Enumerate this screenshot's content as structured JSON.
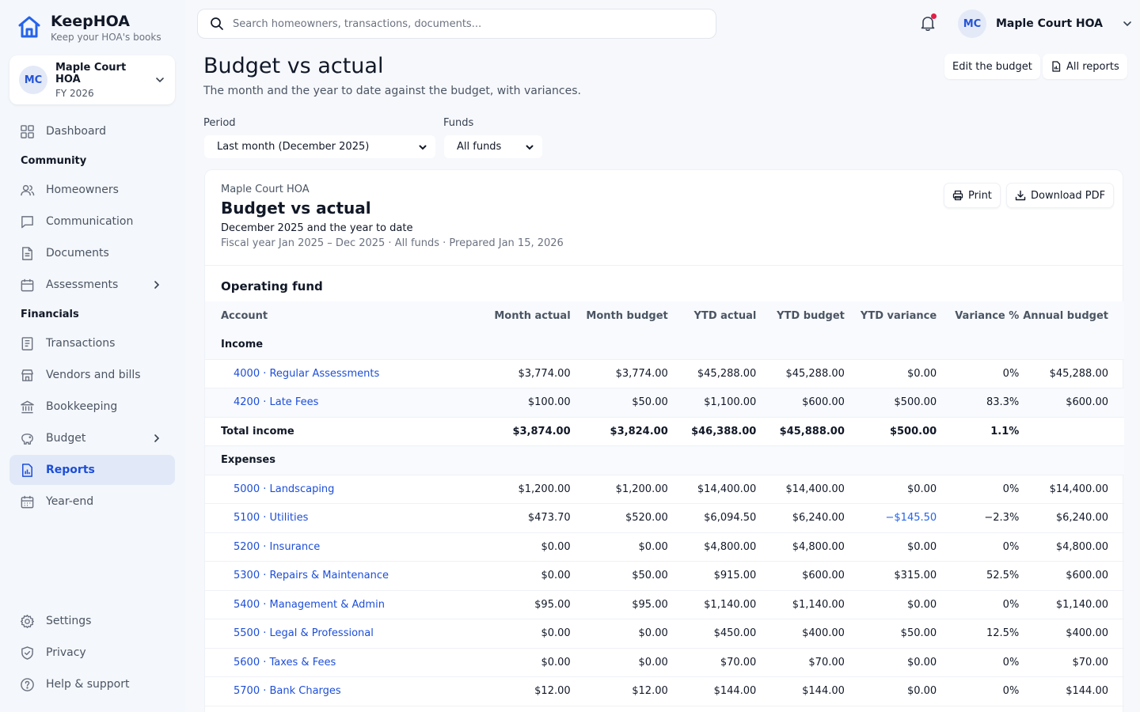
{
  "app": {
    "brand_name": "KeepHOA",
    "brand_tagline": "Keep your HOA's books"
  },
  "org": {
    "initials": "MC",
    "name": "Maple Court HOA",
    "fiscal_year": "FY 2026"
  },
  "sidebar": {
    "items": [
      {
        "label": "Dashboard",
        "icon": "grid-icon"
      },
      {
        "section": "Community"
      },
      {
        "label": "Homeowners",
        "icon": "people-icon"
      },
      {
        "label": "Communication",
        "icon": "chat-icon"
      },
      {
        "label": "Documents",
        "icon": "document-icon"
      },
      {
        "label": "Assessments",
        "icon": "calendar-icon"
      },
      {
        "section": "Financials"
      },
      {
        "label": "Transactions",
        "icon": "ledger-icon"
      },
      {
        "label": "Vendors and bills",
        "icon": "store-icon"
      },
      {
        "label": "Bookkeeping",
        "icon": "bank-icon"
      },
      {
        "label": "Budget",
        "icon": "piggy-icon"
      },
      {
        "label": "Reports",
        "icon": "report-icon",
        "active": true
      },
      {
        "label": "Year-end",
        "icon": "calendar-icon"
      }
    ],
    "community_label": "Community",
    "financials_label": "Financials",
    "dashboard": "Dashboard",
    "homeowners": "Homeowners",
    "communication": "Communication",
    "documents": "Documents",
    "assessments": "Assessments",
    "transactions": "Transactions",
    "vendors": "Vendors and bills",
    "bookkeeping": "Bookkeeping",
    "budget": "Budget",
    "reports": "Reports",
    "year_end": "Year-end",
    "settings": "Settings",
    "privacy": "Privacy",
    "help": "Help & support"
  },
  "topbar": {
    "search_placeholder": "Search homeowners, transactions, documents...",
    "user_initials": "MC",
    "user_name": "Maple Court HOA"
  },
  "page": {
    "title": "Budget vs actual",
    "subtitle": "The month and the year to date against the budget, with variances.",
    "edit_budget": "Edit the budget",
    "all_reports": "All reports"
  },
  "filters": {
    "period_label": "Period",
    "period_value": "Last month (December 2025)",
    "funds_label": "Funds",
    "funds_value": "All funds"
  },
  "report": {
    "org": "Maple Court HOA",
    "title": "Budget vs actual",
    "subtitle": "December 2025 and the year to date",
    "meta": "Fiscal year Jan 2025 – Dec 2025 · All funds · Prepared Jan 15, 2026",
    "print": "Print",
    "download": "Download PDF",
    "fund_title": "Operating fund",
    "columns": [
      "Account",
      "Month actual",
      "Month budget",
      "YTD actual",
      "YTD budget",
      "YTD variance",
      "Variance %",
      "Annual budget"
    ],
    "income_label": "Income",
    "income_rows": [
      [
        "4000 · Regular Assessments",
        "$3,774.00",
        "$3,774.00",
        "$45,288.00",
        "$45,288.00",
        "$0.00",
        "0%",
        "$45,288.00"
      ],
      [
        "4200 · Late Fees",
        "$100.00",
        "$50.00",
        "$1,100.00",
        "$600.00",
        "$500.00",
        "83.3%",
        "$600.00"
      ]
    ],
    "total_income": [
      "Total income",
      "$3,874.00",
      "$3,824.00",
      "$46,388.00",
      "$45,888.00",
      "$500.00",
      "1.1%",
      ""
    ],
    "expenses_label": "Expenses",
    "expense_rows": [
      [
        "5000 · Landscaping",
        "$1,200.00",
        "$1,200.00",
        "$14,400.00",
        "$14,400.00",
        "$0.00",
        "0%",
        "$14,400.00"
      ],
      [
        "5100 · Utilities",
        "$473.70",
        "$520.00",
        "$6,094.50",
        "$6,240.00",
        "−$145.50",
        "−2.3%",
        "$6,240.00"
      ],
      [
        "5200 · Insurance",
        "$0.00",
        "$0.00",
        "$4,800.00",
        "$4,800.00",
        "$0.00",
        "0%",
        "$4,800.00"
      ],
      [
        "5300 · Repairs & Maintenance",
        "$0.00",
        "$50.00",
        "$915.00",
        "$600.00",
        "$315.00",
        "52.5%",
        "$600.00"
      ],
      [
        "5400 · Management & Admin",
        "$95.00",
        "$95.00",
        "$1,140.00",
        "$1,140.00",
        "$0.00",
        "0%",
        "$1,140.00"
      ],
      [
        "5500 · Legal & Professional",
        "$0.00",
        "$0.00",
        "$450.00",
        "$400.00",
        "$50.00",
        "12.5%",
        "$400.00"
      ],
      [
        "5600 · Taxes & Fees",
        "$0.00",
        "$0.00",
        "$70.00",
        "$70.00",
        "$0.00",
        "0%",
        "$70.00"
      ],
      [
        "5700 · Bank Charges",
        "$12.00",
        "$12.00",
        "$144.00",
        "$144.00",
        "$0.00",
        "0%",
        "$144.00"
      ]
    ]
  }
}
